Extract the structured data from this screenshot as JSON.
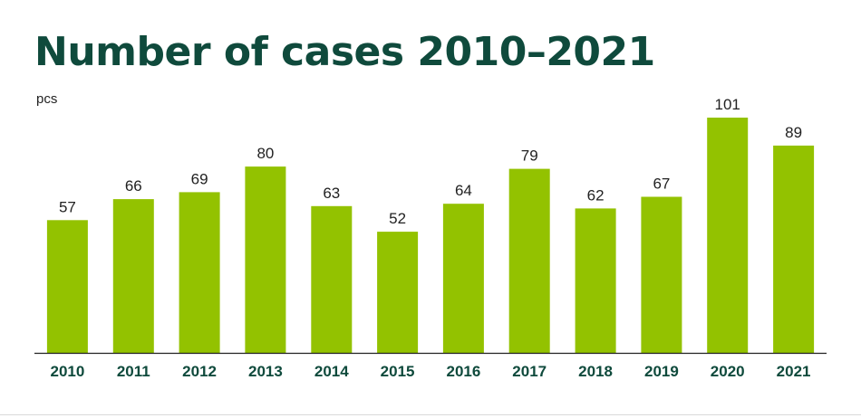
{
  "colors": {
    "bar": "#93c200",
    "title": "#0f4a3c",
    "tick_label": "#0f4a3c",
    "value_label": "#222222",
    "axis": "#222222"
  },
  "chart_data": {
    "type": "bar",
    "title": "Number of cases 2010–2021",
    "ylabel": "pcs",
    "xlabel": "",
    "categories": [
      "2010",
      "2011",
      "2012",
      "2013",
      "2014",
      "2015",
      "2016",
      "2017",
      "2018",
      "2019",
      "2020",
      "2021"
    ],
    "values": [
      57,
      66,
      69,
      80,
      63,
      52,
      64,
      79,
      62,
      67,
      101,
      89
    ],
    "ylim": [
      0,
      101
    ],
    "grid": false,
    "legend": "none",
    "data_labels": true
  }
}
